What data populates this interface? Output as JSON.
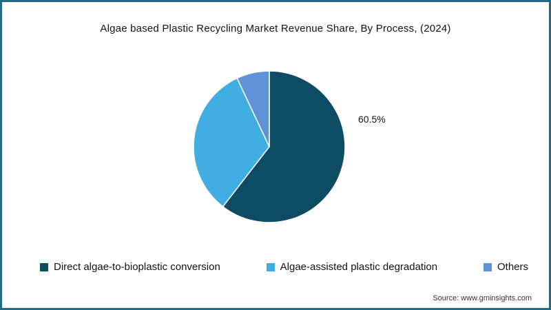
{
  "title": "Algae based Plastic Recycling Market Revenue Share, By Process,  (2024)",
  "chart_data": {
    "type": "pie",
    "labels": [
      "Direct algae-to-bioplastic conversion",
      "Algae-assisted plastic degradation",
      "Others"
    ],
    "values": [
      60.5,
      32.5,
      7.0
    ],
    "colors": [
      "#0e4c63",
      "#41aee3",
      "#5f92d8"
    ],
    "shown_value_label": "60.5%",
    "start_angle_deg": -90,
    "direction": "clockwise",
    "legend_position": "bottom",
    "slice_stroke_color": "#ffffff"
  },
  "source": "Source: www.gminsights.com",
  "frame_border_color": "#246a85"
}
